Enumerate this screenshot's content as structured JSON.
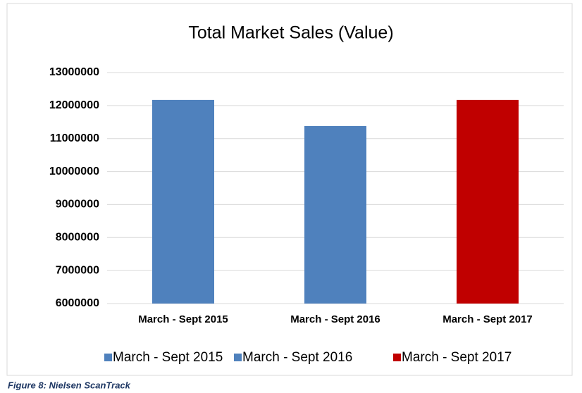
{
  "chart_data": {
    "type": "bar",
    "title": "Total Market Sales (Value)",
    "categories": [
      "March - Sept 2015",
      "March - Sept 2016",
      "March - Sept 2017"
    ],
    "values": [
      12170000,
      11380000,
      12170000
    ],
    "colors": [
      "#4f81bd",
      "#4f81bd",
      "#c00000"
    ],
    "ylim": [
      6000000,
      13000000
    ],
    "yticks": [
      6000000,
      7000000,
      8000000,
      9000000,
      10000000,
      11000000,
      12000000,
      13000000
    ],
    "grid": true,
    "legend": "bottom"
  },
  "caption": "Figure 8: Nielsen ScanTrack"
}
